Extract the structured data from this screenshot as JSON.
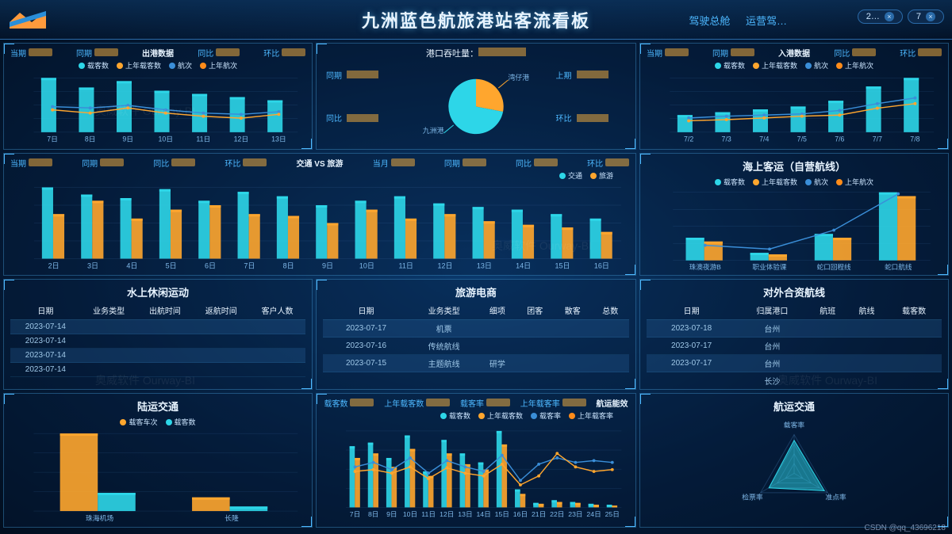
{
  "header": {
    "title": "九洲蓝色航旅港站客流看板",
    "nav1": "驾驶总舱",
    "nav2": "运营驾…",
    "pill1": "2…",
    "pill2": "7"
  },
  "colors": {
    "cyan": "#2dd6e8",
    "orange": "#ffa62e",
    "blue": "#3a8ed8",
    "darkblue": "#1c5a9a",
    "grid": "#2a5a8a",
    "text": "#cde6ff",
    "accent": "#4db8ff"
  },
  "departure": {
    "title": "出港数据",
    "metrics": [
      "当期",
      "同期",
      "同比",
      "环比"
    ],
    "legend": [
      "载客数",
      "上年载客数",
      "航次",
      "上年航次"
    ],
    "legend_colors": [
      "#2dd6e8",
      "#ffa62e",
      "#3a8ed8",
      "#ff8c1a"
    ],
    "x": [
      "7日",
      "8日",
      "9日",
      "10日",
      "11日",
      "12日",
      "13日"
    ],
    "bars": [
      85,
      70,
      80,
      65,
      60,
      55,
      50
    ],
    "line1": [
      40,
      38,
      42,
      35,
      30,
      28,
      32
    ],
    "line2": [
      35,
      30,
      38,
      30,
      25,
      22,
      28
    ]
  },
  "throughput": {
    "title_prefix": "港口吞吐量：",
    "left_labels": [
      "同期",
      "同比"
    ],
    "right_labels": [
      "上期",
      "环比"
    ],
    "pie": [
      {
        "name": "湾仔港",
        "value": 28,
        "color": "#ffa62e"
      },
      {
        "name": "九洲港",
        "value": 72,
        "color": "#2dd6e8"
      }
    ]
  },
  "arrival": {
    "title": "入港数据",
    "metrics": [
      "当期",
      "同期",
      "同比",
      "环比"
    ],
    "legend": [
      "载客数",
      "上年载客数",
      "航次",
      "上年航次"
    ],
    "legend_colors": [
      "#2dd6e8",
      "#ffa62e",
      "#3a8ed8",
      "#ff8c1a"
    ],
    "x": [
      "7/2",
      "7/3",
      "7/4",
      "7/5",
      "7/6",
      "7/7",
      "7/8"
    ],
    "bars": [
      30,
      35,
      40,
      45,
      55,
      80,
      95
    ],
    "line1": [
      25,
      28,
      30,
      32,
      38,
      50,
      60
    ],
    "line2": [
      20,
      22,
      25,
      28,
      30,
      42,
      50
    ]
  },
  "traffic_tourism": {
    "title": "交通 VS 旅游",
    "metrics_left": [
      "当期",
      "同期",
      "同比",
      "环比"
    ],
    "metrics_right": [
      "当月",
      "同期",
      "同比",
      "环比"
    ],
    "legend": [
      "交通",
      "旅游"
    ],
    "legend_colors": [
      "#2dd6e8",
      "#ffa62e"
    ],
    "x": [
      "2日",
      "3日",
      "4日",
      "5日",
      "6日",
      "7日",
      "8日",
      "9日",
      "10日",
      "11日",
      "12日",
      "13日",
      "14日",
      "15日",
      "16日"
    ],
    "traffic": [
      80,
      72,
      68,
      78,
      65,
      75,
      70,
      60,
      65,
      70,
      62,
      58,
      55,
      50,
      45
    ],
    "tourism": [
      50,
      65,
      45,
      55,
      60,
      50,
      48,
      40,
      55,
      45,
      50,
      42,
      38,
      35,
      30
    ]
  },
  "sea_passenger": {
    "title": "海上客运（自营航线）",
    "legend": [
      "载客数",
      "上年载客数",
      "航次",
      "上年航次"
    ],
    "legend_colors": [
      "#2dd6e8",
      "#ffa62e",
      "#3a8ed8",
      "#ff8c1a"
    ],
    "x": [
      "珠澳夜游B",
      "职业体验课",
      "蛇口回程线",
      "蛇口航线"
    ],
    "bars1": [
      30,
      10,
      35,
      90
    ],
    "bars2": [
      25,
      8,
      30,
      85
    ],
    "line": [
      20,
      15,
      40,
      88
    ]
  },
  "water_leisure": {
    "title": "水上休闲运动",
    "columns": [
      "日期",
      "业务类型",
      "出航时间",
      "返航时间",
      "客户人数"
    ],
    "rows": [
      [
        "2023-07-14",
        "",
        "",
        "",
        ""
      ],
      [
        "2023-07-14",
        "",
        "",
        "",
        ""
      ],
      [
        "2023-07-14",
        "",
        "",
        "",
        ""
      ],
      [
        "2023-07-14",
        "",
        "",
        "",
        ""
      ]
    ]
  },
  "tourism_ecom": {
    "title": "旅游电商",
    "columns": [
      "日期",
      "业务类型",
      "细项",
      "团客",
      "散客",
      "总数"
    ],
    "rows": [
      [
        "2023-07-17",
        "机票",
        "",
        "",
        "",
        ""
      ],
      [
        "2023-07-16",
        "传统航线",
        "",
        "",
        "",
        ""
      ],
      [
        "2023-07-15",
        "主题航线",
        "研学",
        "",
        "",
        ""
      ]
    ]
  },
  "jv_routes": {
    "title": "对外合资航线",
    "columns": [
      "日期",
      "归属港口",
      "航班",
      "航线",
      "载客数"
    ],
    "rows": [
      [
        "2023-07-18",
        "台州",
        "",
        "",
        ""
      ],
      [
        "2023-07-17",
        "台州",
        "",
        "",
        ""
      ],
      [
        "2023-07-17",
        "台州",
        "",
        "",
        ""
      ],
      [
        "",
        "长沙",
        "",
        "",
        ""
      ]
    ]
  },
  "land_transport": {
    "title": "陆运交通",
    "legend": [
      "载客车次",
      "载客数"
    ],
    "legend_colors": [
      "#ffa62e",
      "#2dd6e8"
    ],
    "x": [
      "珠海机场",
      "长隆"
    ],
    "a": [
      85,
      15
    ],
    "b": [
      20,
      5
    ]
  },
  "shipping_eff": {
    "title": "航运能效",
    "top_metrics": [
      "载客数",
      "上年载客数",
      "载客率",
      "上年载客率"
    ],
    "legend": [
      "载客数",
      "上年载客数",
      "载客率",
      "上年载客率"
    ],
    "legend_colors": [
      "#2dd6e8",
      "#ffa62e",
      "#3a8ed8",
      "#ff8c1a"
    ],
    "x": [
      "7日",
      "8日",
      "9日",
      "10日",
      "11日",
      "12日",
      "13日",
      "14日",
      "15日",
      "16日",
      "21日",
      "22日",
      "23日",
      "24日",
      "25日"
    ],
    "bars1": [
      68,
      72,
      55,
      80,
      40,
      75,
      60,
      50,
      85,
      20,
      5,
      8,
      6,
      4,
      3
    ],
    "bars2": [
      55,
      60,
      45,
      65,
      35,
      60,
      48,
      42,
      70,
      15,
      4,
      6,
      5,
      3,
      2
    ],
    "line1": [
      45,
      50,
      42,
      55,
      38,
      52,
      45,
      40,
      58,
      30,
      48,
      55,
      50,
      52,
      50
    ],
    "line2": [
      40,
      42,
      38,
      45,
      32,
      44,
      38,
      35,
      48,
      25,
      35,
      60,
      45,
      40,
      42
    ]
  },
  "shipping_transport": {
    "title": "航运交通",
    "axes": [
      "载客率",
      "准点率",
      "检票率"
    ],
    "values": [
      0.85,
      0.9,
      0.75
    ],
    "color": "#2dd6e8"
  },
  "footer": "CSDN @qq_43696218"
}
